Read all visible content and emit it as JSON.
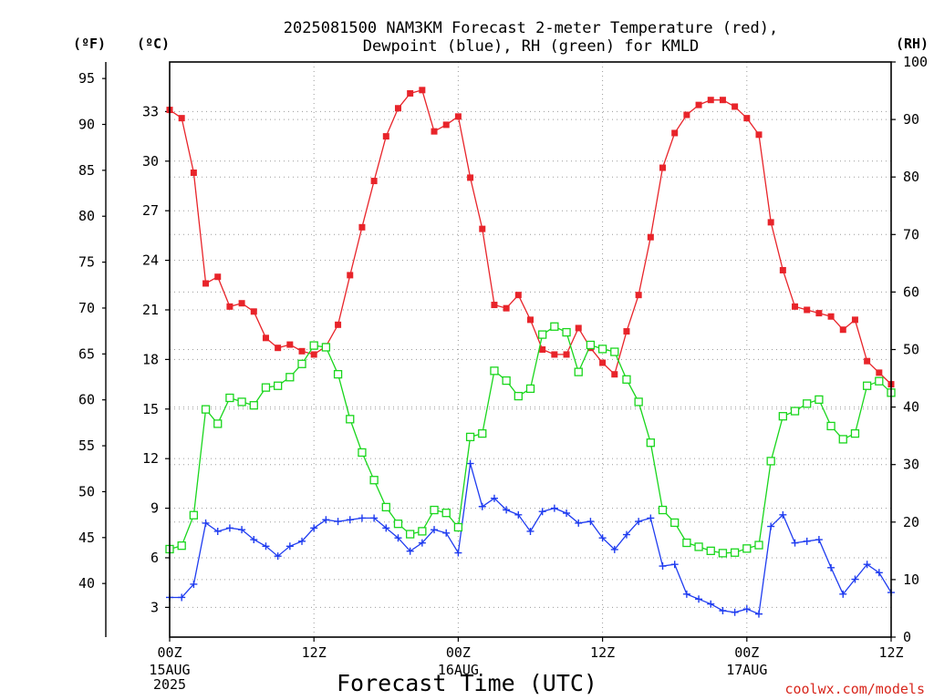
{
  "chart_data": {
    "type": "line",
    "title_lines": [
      "2025081500 NAM3KM Forecast 2-meter Temperature (red),",
      "Dewpoint (blue), RH (green) for KMLD"
    ],
    "xlabel": "Forecast Time (UTC)",
    "credit": "coolwx.com/models",
    "unit_labels": {
      "fahrenheit": "(ºF)",
      "celsius": "(ºC)",
      "rh": "(RH)"
    },
    "x_ticks": [
      {
        "hour": 0,
        "label": "00Z",
        "sub": [
          "15AUG",
          "2025"
        ]
      },
      {
        "hour": 12,
        "label": "12Z",
        "sub": []
      },
      {
        "hour": 24,
        "label": "00Z",
        "sub": [
          "16AUG"
        ]
      },
      {
        "hour": 36,
        "label": "12Z",
        "sub": []
      },
      {
        "hour": 48,
        "label": "00Z",
        "sub": [
          "17AUG"
        ]
      },
      {
        "hour": 60,
        "label": "12Z",
        "sub": []
      }
    ],
    "xlim": [
      0,
      60
    ],
    "ylim_celsius": [
      1.2,
      36.0
    ],
    "ylim_rh": [
      0,
      100
    ],
    "ylim_fahrenheit": [
      34.16,
      96.8
    ],
    "celsius_ticks": [
      3,
      6,
      9,
      12,
      15,
      18,
      21,
      24,
      27,
      30,
      33
    ],
    "fahrenheit_ticks": [
      40,
      45,
      50,
      55,
      60,
      65,
      70,
      75,
      80,
      85,
      90,
      95
    ],
    "rh_ticks": [
      0,
      10,
      20,
      30,
      40,
      50,
      60,
      70,
      80,
      90,
      100
    ],
    "grid": true,
    "colors": {
      "temperature": "#e8242a",
      "dewpoint": "#1f3cf0",
      "rh": "#19d61c"
    },
    "x_hours": [
      0,
      1,
      2,
      3,
      4,
      5,
      6,
      7,
      8,
      9,
      10,
      11,
      12,
      13,
      14,
      15,
      16,
      17,
      18,
      19,
      20,
      21,
      22,
      23,
      24,
      25,
      26,
      27,
      28,
      29,
      30,
      31,
      32,
      33,
      34,
      35,
      36,
      37,
      38,
      39,
      40,
      41,
      42,
      43,
      44,
      45,
      46,
      47,
      48,
      49,
      50,
      51,
      52,
      53,
      54,
      55,
      56,
      57,
      58,
      59,
      60
    ],
    "series": [
      {
        "key": "temperature",
        "marker": "filled-square",
        "axis": "celsius",
        "values": [
          33.1,
          32.6,
          29.3,
          22.6,
          23.0,
          21.2,
          21.4,
          20.9,
          19.3,
          18.7,
          18.9,
          18.5,
          18.3,
          18.8,
          20.1,
          23.1,
          26.0,
          28.8,
          31.5,
          33.2,
          34.1,
          34.3,
          31.8,
          32.2,
          32.7,
          29.0,
          25.9,
          21.3,
          21.1,
          21.9,
          20.4,
          18.6,
          18.3,
          18.3,
          19.9,
          18.7,
          17.8,
          17.1,
          19.7,
          21.9,
          25.4,
          29.6,
          31.7,
          32.8,
          33.4,
          33.7,
          33.7,
          33.3,
          32.6,
          31.6,
          26.3,
          23.4,
          21.2,
          21.0,
          20.8,
          20.6,
          19.8,
          20.4,
          17.9,
          17.2,
          16.5
        ]
      },
      {
        "key": "dewpoint",
        "marker": "plus",
        "axis": "celsius",
        "values": [
          3.6,
          3.6,
          4.4,
          8.1,
          7.6,
          7.8,
          7.7,
          7.1,
          6.7,
          6.1,
          6.7,
          7.0,
          7.8,
          8.3,
          8.2,
          8.3,
          8.4,
          8.4,
          7.8,
          7.2,
          6.4,
          6.9,
          7.7,
          7.5,
          6.3,
          11.7,
          9.1,
          9.6,
          8.9,
          8.6,
          7.6,
          8.8,
          9.0,
          8.7,
          8.1,
          8.2,
          7.2,
          6.5,
          7.4,
          8.2,
          8.4,
          5.5,
          5.6,
          3.8,
          3.5,
          3.2,
          2.8,
          2.7,
          2.9,
          2.6,
          7.9,
          8.6,
          6.9,
          7.0,
          7.1,
          5.4,
          3.8,
          4.7,
          5.6,
          5.1,
          3.9
        ]
      },
      {
        "key": "rh",
        "marker": "open-square",
        "axis": "rh",
        "values": [
          15.3,
          15.9,
          21.2,
          39.6,
          37.1,
          41.6,
          40.9,
          40.3,
          43.4,
          43.7,
          45.2,
          47.5,
          50.7,
          50.4,
          45.7,
          37.9,
          32.1,
          27.3,
          22.6,
          19.7,
          17.9,
          18.4,
          22.1,
          21.6,
          19.1,
          34.8,
          35.4,
          46.3,
          44.6,
          41.9,
          43.2,
          52.6,
          54.0,
          53.0,
          46.1,
          50.8,
          50.1,
          49.6,
          44.8,
          40.9,
          33.8,
          22.1,
          19.9,
          16.4,
          15.7,
          15.0,
          14.6,
          14.7,
          15.4,
          16.0,
          30.6,
          38.4,
          39.3,
          40.6,
          41.3,
          36.7,
          34.4,
          35.4,
          43.7,
          44.5,
          42.5
        ]
      }
    ]
  }
}
